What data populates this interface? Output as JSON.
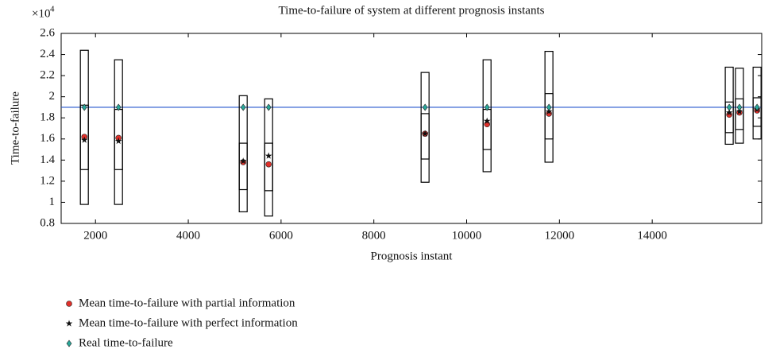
{
  "chart_data": {
    "type": "box",
    "title": "Time-to-failure of system at different prognosis instants",
    "xlabel": "Prognosis instant",
    "ylabel": "Time-to-failure",
    "y_multiplier": "×10",
    "y_multiplier_exp": "4",
    "x": [
      1760,
      2496,
      5184,
      5732,
      9104,
      10440,
      11774,
      15660,
      15880,
      16260
    ],
    "outer_low": [
      0.98,
      0.98,
      0.91,
      0.87,
      1.19,
      1.29,
      1.38,
      1.55,
      1.56,
      1.6
    ],
    "outer_high": [
      2.44,
      2.35,
      2.01,
      1.98,
      2.23,
      2.35,
      2.43,
      2.28,
      2.27,
      2.28
    ],
    "inner_low": [
      1.31,
      1.31,
      1.12,
      1.11,
      1.41,
      1.5,
      1.6,
      1.66,
      1.69,
      1.72
    ],
    "inner_high": [
      1.92,
      1.88,
      1.56,
      1.56,
      1.84,
      1.88,
      2.03,
      1.95,
      1.98,
      1.99
    ],
    "series": [
      {
        "name": "Mean time-to-failure with partial information",
        "color": "#e0302a",
        "marker": "circle",
        "values": [
          1.62,
          1.61,
          1.38,
          1.36,
          1.65,
          1.74,
          1.84,
          1.83,
          1.85,
          1.87
        ]
      },
      {
        "name": "Mean time-to-failure with perfect information",
        "color": "#111111",
        "marker": "star",
        "values": [
          1.59,
          1.58,
          1.39,
          1.44,
          1.65,
          1.77,
          1.86,
          1.85,
          1.86,
          1.88
        ]
      },
      {
        "name": "Real time-to-failure",
        "color": "#2aa89a",
        "marker": "diamond",
        "values": [
          1.9,
          1.9,
          1.9,
          1.9,
          1.9,
          1.9,
          1.9,
          1.9,
          1.9,
          1.9
        ]
      }
    ],
    "reference_line": {
      "value": 1.9,
      "color": "#2255cc"
    },
    "xlim": [
      1260,
      16360
    ],
    "xticks": [
      2000,
      4000,
      6000,
      8000,
      10000,
      12000,
      14000
    ],
    "ylim": [
      0.8,
      2.6
    ],
    "yticks": [
      0.8,
      1,
      1.2,
      1.4,
      1.6,
      1.8,
      2,
      2.2,
      2.4,
      2.6
    ],
    "legend": "bottom-left"
  }
}
